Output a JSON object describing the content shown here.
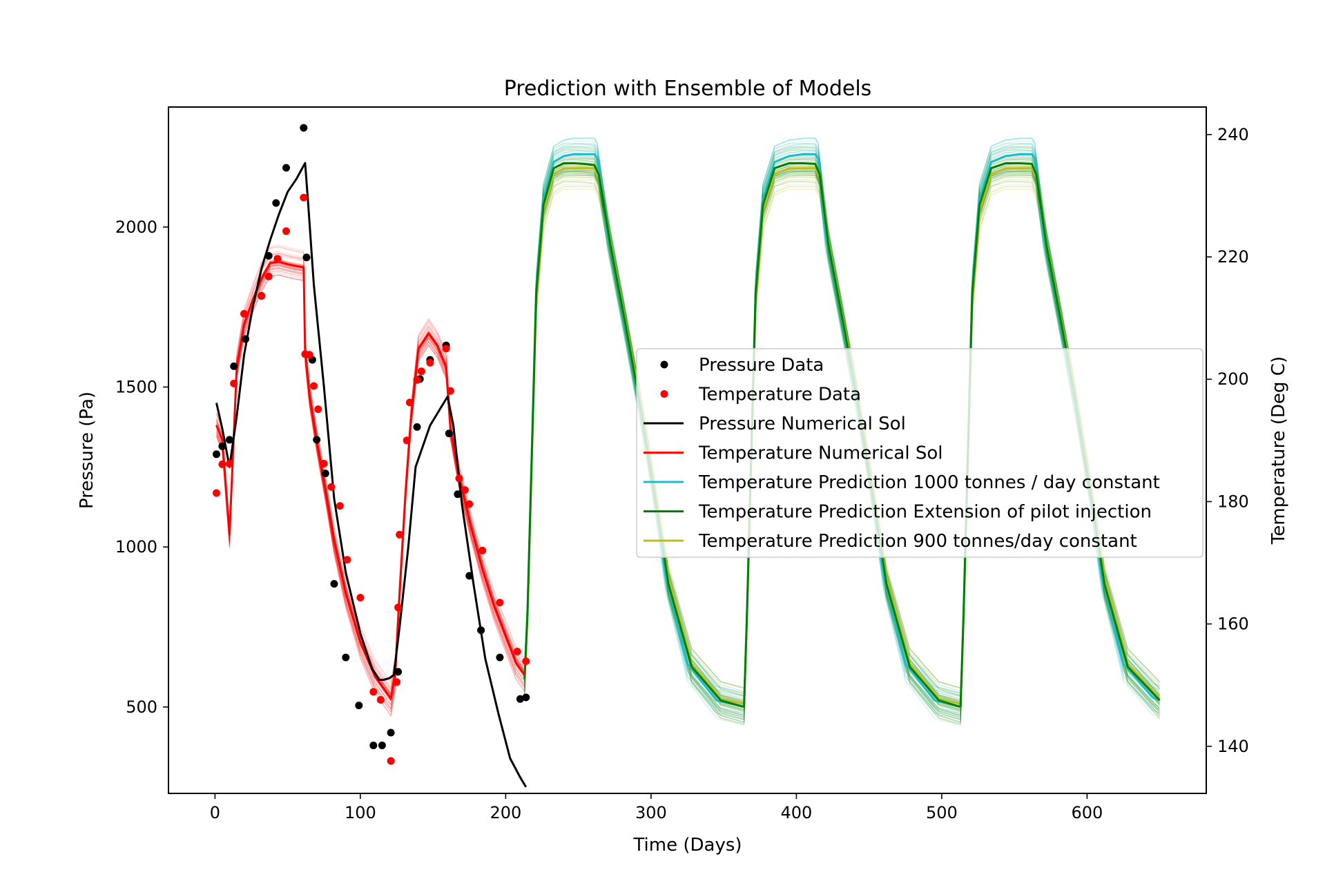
{
  "chart_data": {
    "type": "line",
    "title": "Prediction with Ensemble of Models",
    "xlabel": "Time (Days)",
    "ylabel_left": "Pressure (Pa)",
    "ylabel_right": "Temperature (Deg C)",
    "xlim": [
      -32,
      682
    ],
    "ylim_left": [
      230,
      2375
    ],
    "ylim_right": [
      132.3,
      244.5
    ],
    "xticks": [
      0,
      100,
      200,
      300,
      400,
      500,
      600
    ],
    "yticks_left": [
      500,
      1000,
      1500,
      2000
    ],
    "yticks_right": [
      140,
      160,
      180,
      200,
      220,
      240
    ],
    "grid": false,
    "legend_position": "center-right",
    "colors": {
      "pressure": "#000000",
      "temperature": "#ff0000",
      "pred_1000": "#17becf",
      "pred_pilot": "#008000",
      "pred_900": "#bcbd22"
    },
    "legend": [
      {
        "label": "Pressure Data",
        "kind": "marker",
        "color": "#000000"
      },
      {
        "label": "Temperature Data",
        "kind": "marker",
        "color": "#ff0000"
      },
      {
        "label": "Pressure Numerical Sol",
        "kind": "line",
        "color": "#000000"
      },
      {
        "label": "Temperature Numerical Sol",
        "kind": "line",
        "color": "#ff0000"
      },
      {
        "label": "Temperature Prediction 1000 tonnes / day constant",
        "kind": "line",
        "color": "#17becf"
      },
      {
        "label": "Temperature Prediction Extension of pilot injection",
        "kind": "line",
        "color": "#008000"
      },
      {
        "label": "Temperature Prediction 900 tonnes/day constant",
        "kind": "line",
        "color": "#bcbd22"
      }
    ],
    "series": [
      {
        "name": "Pressure Data",
        "kind": "scatter",
        "axis": "left",
        "x": [
          1,
          5,
          10,
          13,
          21,
          32,
          37,
          42,
          49,
          61,
          63,
          67,
          70,
          76,
          82,
          90,
          99,
          109,
          115,
          121,
          126,
          139,
          141,
          148,
          159,
          161,
          167,
          175,
          183,
          196,
          210,
          214
        ],
        "y": [
          1290,
          1315,
          1335,
          1565,
          1650,
          1785,
          1910,
          2075,
          2185,
          2310,
          1905,
          1585,
          1335,
          1230,
          885,
          655,
          505,
          380,
          380,
          420,
          610,
          1375,
          1525,
          1585,
          1630,
          1355,
          1165,
          910,
          740,
          655,
          525,
          530
        ]
      },
      {
        "name": "Temperature Data",
        "kind": "scatter",
        "axis": "right",
        "x": [
          1,
          5,
          10,
          13,
          20,
          32,
          37,
          43,
          49,
          61,
          62,
          65,
          68,
          71,
          75,
          80,
          86,
          91,
          100,
          109,
          114,
          121,
          125,
          126,
          127,
          132,
          134,
          139,
          142,
          148,
          159,
          162,
          168,
          172,
          175,
          184,
          196,
          208,
          214
        ],
        "y": [
          181.4,
          186.1,
          186.2,
          199.3,
          210.7,
          213.6,
          216.8,
          219.7,
          224.2,
          229.7,
          204.1,
          204.0,
          198.9,
          195.1,
          186.2,
          182.4,
          179.3,
          170.5,
          164.3,
          148.9,
          147.6,
          137.6,
          150.5,
          162.7,
          174.6,
          190.0,
          196.2,
          199.9,
          201.3,
          202.7,
          205.0,
          198.1,
          183.8,
          181.9,
          179.6,
          172.0,
          163.5,
          155.5,
          153.9
        ]
      },
      {
        "name": "Pressure Numerical Sol",
        "kind": "line",
        "axis": "left",
        "x": [
          1,
          5,
          10,
          15,
          20,
          26,
          32,
          38,
          44,
          50,
          56,
          62,
          64,
          68,
          75,
          82,
          90,
          100,
          108,
          113,
          116,
          120,
          123,
          127,
          133,
          138,
          148,
          160,
          164,
          170,
          178,
          186,
          195,
          203,
          210,
          214
        ],
        "y": [
          1450,
          1370,
          1250,
          1410,
          1600,
          1750,
          1870,
          1960,
          2040,
          2110,
          2150,
          2200,
          2080,
          1820,
          1500,
          1150,
          920,
          730,
          620,
          585,
          585,
          590,
          600,
          750,
          1000,
          1250,
          1380,
          1470,
          1380,
          1130,
          880,
          650,
          480,
          340,
          280,
          250
        ]
      },
      {
        "name": "Temperature Numerical Sol",
        "kind": "line",
        "axis": "right",
        "x": [
          1,
          5,
          10,
          15,
          20,
          26,
          32,
          38,
          44,
          50,
          56,
          61,
          62,
          65,
          70,
          76,
          82,
          90,
          100,
          110,
          116,
          121,
          124,
          127,
          131,
          135,
          140,
          147,
          153,
          159,
          162,
          168,
          176,
          184,
          192,
          200,
          207,
          213
        ],
        "y": [
          192.5,
          190.0,
          174.6,
          202.0,
          209.0,
          213.0,
          216.5,
          219.0,
          219.2,
          218.8,
          218.5,
          218.3,
          204.5,
          197.5,
          190.0,
          182.0,
          173.5,
          165.0,
          157.0,
          151.5,
          149.5,
          147.8,
          152.0,
          165.0,
          181.0,
          194.0,
          205.0,
          207.5,
          205.5,
          202.0,
          192.0,
          184.0,
          176.0,
          169.0,
          163.0,
          158.0,
          153.7,
          151.7
        ]
      },
      {
        "name": "Temperature Prediction 1000 tonnes / day constant",
        "kind": "line",
        "axis": "right",
        "x": [
          213,
          215,
          221,
          226,
          233,
          240,
          247,
          254,
          261,
          263,
          270,
          280,
          290,
          300,
          310,
          325,
          345,
          363,
          364,
          366,
          372,
          377,
          385,
          395,
          405,
          413,
          415,
          420,
          430,
          440,
          450,
          460,
          475,
          495,
          512,
          513,
          515,
          521,
          526,
          534,
          544,
          554,
          562,
          564,
          570,
          580,
          590,
          600,
          610,
          625,
          645,
          650
        ],
        "y": [
          151.0,
          162.0,
          215.0,
          229.5,
          235.5,
          236.5,
          236.8,
          236.8,
          236.8,
          236.0,
          224.0,
          211.5,
          198.5,
          185.0,
          168.0,
          153.5,
          147.5,
          146.5,
          146.5,
          162.0,
          215.0,
          229.5,
          235.5,
          236.5,
          236.8,
          236.8,
          236.0,
          224.0,
          211.5,
          198.5,
          185.0,
          168.0,
          153.5,
          147.5,
          146.5,
          146.5,
          162.0,
          215.0,
          229.5,
          235.5,
          236.5,
          236.8,
          236.8,
          236.0,
          224.0,
          211.5,
          198.5,
          185.0,
          168.0,
          153.5,
          148.0,
          147.5
        ]
      },
      {
        "name": "Temperature Prediction Extension of pilot injection",
        "kind": "line",
        "axis": "right",
        "x": [
          213,
          215,
          221,
          226,
          233,
          240,
          247,
          254,
          261,
          264,
          272,
          282,
          292,
          302,
          312,
          328,
          348,
          363,
          364,
          366,
          372,
          377,
          385,
          395,
          405,
          413,
          416,
          422,
          432,
          442,
          452,
          462,
          478,
          498,
          512,
          513,
          515,
          521,
          526,
          534,
          544,
          554,
          562,
          565,
          572,
          582,
          592,
          602,
          612,
          628,
          648,
          650
        ],
        "y": [
          151.0,
          161.5,
          214.0,
          228.5,
          234.5,
          235.3,
          235.3,
          235.2,
          235.0,
          233.5,
          222.0,
          209.5,
          196.5,
          182.0,
          166.5,
          153.0,
          147.5,
          146.5,
          146.5,
          161.5,
          214.0,
          228.5,
          234.5,
          235.3,
          235.3,
          235.2,
          233.5,
          222.0,
          209.5,
          196.5,
          182.0,
          166.5,
          153.0,
          147.5,
          146.5,
          146.5,
          161.5,
          214.0,
          228.5,
          234.5,
          235.3,
          235.3,
          235.2,
          233.5,
          222.0,
          209.5,
          196.5,
          182.0,
          166.5,
          153.0,
          148.0,
          147.5
        ]
      },
      {
        "name": "Temperature Prediction 900 tonnes/day constant",
        "kind": "line",
        "axis": "right",
        "x": [
          213,
          215,
          221,
          226,
          233,
          240,
          247,
          254,
          261,
          264,
          272,
          282,
          292,
          302,
          312,
          328,
          348,
          363,
          364,
          366,
          372,
          377,
          385,
          395,
          405,
          413,
          416,
          422,
          432,
          442,
          452,
          462,
          478,
          498,
          512,
          513,
          515,
          521,
          526,
          534,
          544,
          554,
          562,
          565,
          572,
          582,
          592,
          602,
          612,
          628,
          648,
          650
        ],
        "y": [
          151.0,
          161.0,
          213.0,
          227.5,
          233.5,
          234.5,
          234.5,
          234.5,
          234.5,
          233.0,
          222.5,
          210.0,
          197.5,
          183.0,
          167.5,
          153.5,
          147.8,
          147.0,
          147.0,
          161.0,
          213.0,
          227.5,
          233.5,
          234.5,
          234.5,
          234.5,
          233.0,
          222.5,
          210.0,
          197.5,
          183.0,
          167.5,
          153.5,
          147.8,
          147.0,
          147.0,
          161.0,
          213.0,
          227.5,
          233.5,
          234.5,
          234.5,
          234.5,
          233.0,
          222.5,
          210.0,
          197.5,
          183.0,
          167.5,
          153.5,
          148.3,
          147.8
        ]
      }
    ]
  }
}
